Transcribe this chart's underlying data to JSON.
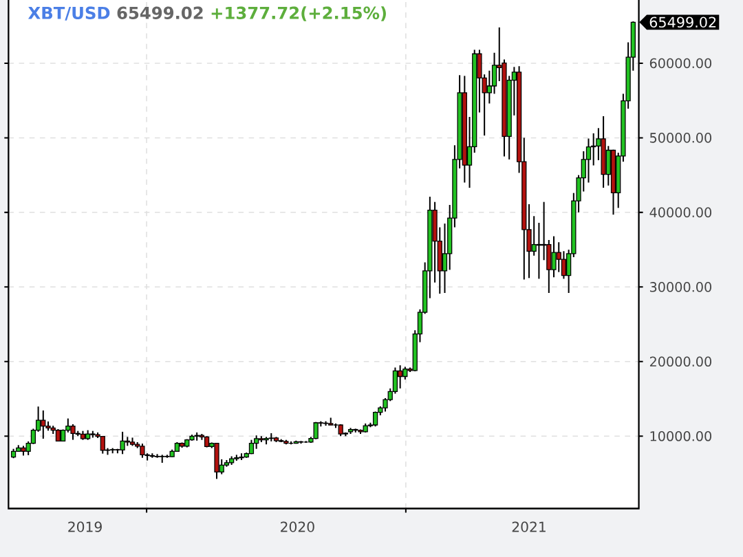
{
  "chart_data": {
    "type": "candlestick",
    "title": "XBT/USD",
    "annotations": [
      "65499.02",
      "+1377.72(+2.15%)",
      "65499.02"
    ],
    "x": [
      "2019-05-27",
      "2019-06-03",
      "2019-06-10",
      "2019-06-17",
      "2019-06-24",
      "2019-07-01",
      "2019-07-08",
      "2019-07-15",
      "2019-07-22",
      "2019-07-29",
      "2019-08-05",
      "2019-08-12",
      "2019-08-19",
      "2019-08-26",
      "2019-09-02",
      "2019-09-09",
      "2019-09-16",
      "2019-09-23",
      "2019-09-30",
      "2019-10-07",
      "2019-10-14",
      "2019-10-21",
      "2019-10-28",
      "2019-11-04",
      "2019-11-11",
      "2019-11-18",
      "2019-11-25",
      "2019-12-02",
      "2019-12-09",
      "2019-12-16",
      "2019-12-23",
      "2019-12-30",
      "2020-01-06",
      "2020-01-13",
      "2020-01-20",
      "2020-01-27",
      "2020-02-03",
      "2020-02-10",
      "2020-02-17",
      "2020-02-24",
      "2020-03-02",
      "2020-03-09",
      "2020-03-16",
      "2020-03-23",
      "2020-03-30",
      "2020-04-06",
      "2020-04-13",
      "2020-04-20",
      "2020-04-27",
      "2020-05-04",
      "2020-05-11",
      "2020-05-18",
      "2020-05-25",
      "2020-06-01",
      "2020-06-08",
      "2020-06-15",
      "2020-06-22",
      "2020-06-29",
      "2020-07-06",
      "2020-07-13",
      "2020-07-20",
      "2020-07-27",
      "2020-08-03",
      "2020-08-10",
      "2020-08-17",
      "2020-08-24",
      "2020-08-31",
      "2020-09-07",
      "2020-09-14",
      "2020-09-21",
      "2020-09-28",
      "2020-10-05",
      "2020-10-12",
      "2020-10-19",
      "2020-10-26",
      "2020-11-02",
      "2020-11-09",
      "2020-11-16",
      "2020-11-23",
      "2020-11-30",
      "2020-12-07",
      "2020-12-14",
      "2020-12-21",
      "2020-12-28",
      "2021-01-04",
      "2021-01-11",
      "2021-01-18",
      "2021-01-25",
      "2021-02-01",
      "2021-02-08",
      "2021-02-15",
      "2021-02-22",
      "2021-03-01",
      "2021-03-08",
      "2021-03-15",
      "2021-03-22",
      "2021-03-29",
      "2021-04-05",
      "2021-04-12",
      "2021-04-19",
      "2021-04-26",
      "2021-05-03",
      "2021-05-10",
      "2021-05-17",
      "2021-05-24",
      "2021-05-31",
      "2021-06-07",
      "2021-06-14",
      "2021-06-21",
      "2021-06-28",
      "2021-07-05",
      "2021-07-12",
      "2021-07-19",
      "2021-07-26",
      "2021-08-02",
      "2021-08-09",
      "2021-08-16",
      "2021-08-23",
      "2021-08-30",
      "2021-09-06",
      "2021-09-13",
      "2021-09-20",
      "2021-09-27",
      "2021-10-04",
      "2021-10-11",
      "2021-10-18"
    ],
    "ohlc": [
      [
        7200,
        8300,
        7050,
        7970
      ],
      [
        7970,
        8800,
        7900,
        8430
      ],
      [
        8430,
        8700,
        7400,
        7970
      ],
      [
        7970,
        9300,
        7450,
        9050
      ],
      [
        9050,
        11000,
        8950,
        10800
      ],
      [
        10800,
        13970,
        10590,
        12130
      ],
      [
        12130,
        13450,
        9660,
        11360
      ],
      [
        11360,
        11970,
        10740,
        11100
      ],
      [
        11100,
        11400,
        10300,
        10800
      ],
      [
        10800,
        10950,
        9300,
        9350
      ],
      [
        9350,
        10900,
        9300,
        10800
      ],
      [
        10800,
        12370,
        10500,
        11350
      ],
      [
        11350,
        11600,
        9510,
        10370
      ],
      [
        10370,
        10700,
        10000,
        10270
      ],
      [
        10270,
        10700,
        9500,
        9660
      ],
      [
        9660,
        10800,
        9500,
        10300
      ],
      [
        10300,
        10700,
        9800,
        10200
      ],
      [
        10200,
        10500,
        9750,
        9970
      ],
      [
        9970,
        10000,
        7660,
        8100
      ],
      [
        8100,
        8400,
        7500,
        8150
      ],
      [
        8150,
        8400,
        7700,
        8200
      ],
      [
        8200,
        8300,
        7700,
        8150
      ],
      [
        8150,
        10590,
        7600,
        9350
      ],
      [
        9350,
        9900,
        8700,
        9200
      ],
      [
        9200,
        9800,
        8700,
        8900
      ],
      [
        8900,
        9200,
        8400,
        8650
      ],
      [
        8650,
        9000,
        7100,
        7500
      ],
      [
        7500,
        7700,
        6740,
        7400
      ],
      [
        7400,
        7700,
        7100,
        7300
      ],
      [
        7300,
        7600,
        7100,
        7250
      ],
      [
        7250,
        7500,
        6430,
        7300
      ],
      [
        7300,
        7500,
        7100,
        7250
      ],
      [
        7250,
        8200,
        7200,
        7960
      ],
      [
        7960,
        9200,
        7900,
        9050
      ],
      [
        9050,
        9150,
        8450,
        8650
      ],
      [
        8650,
        9600,
        8500,
        9500
      ],
      [
        9500,
        10200,
        9400,
        10000
      ],
      [
        10000,
        10500,
        9400,
        10100
      ],
      [
        10100,
        10300,
        9500,
        9900
      ],
      [
        9900,
        10000,
        8500,
        8600
      ],
      [
        8600,
        9150,
        8400,
        9050
      ],
      [
        9050,
        9100,
        4270,
        5200
      ],
      [
        5200,
        6900,
        4900,
        6120
      ],
      [
        6120,
        6800,
        5900,
        6450
      ],
      [
        6450,
        7300,
        6150,
        6980
      ],
      [
        6980,
        7500,
        6700,
        7100
      ],
      [
        7100,
        7700,
        6800,
        7200
      ],
      [
        7200,
        7800,
        7100,
        7660
      ],
      [
        7660,
        9500,
        7600,
        9050
      ],
      [
        9050,
        10100,
        8300,
        9660
      ],
      [
        9660,
        10000,
        9200,
        9500
      ],
      [
        9500,
        9900,
        8900,
        9700
      ],
      [
        9700,
        10400,
        9300,
        9750
      ],
      [
        9750,
        9900,
        9200,
        9400
      ],
      [
        9400,
        9600,
        9200,
        9300
      ],
      [
        9300,
        9500,
        8900,
        9050
      ],
      [
        9050,
        9300,
        8900,
        9050
      ],
      [
        9050,
        9400,
        9000,
        9250
      ],
      [
        9250,
        9350,
        9000,
        9200
      ],
      [
        9200,
        9350,
        9100,
        9200
      ],
      [
        9200,
        9900,
        9100,
        9700
      ],
      [
        9700,
        11900,
        9600,
        11800
      ],
      [
        11800,
        12000,
        11300,
        11750
      ],
      [
        11750,
        12000,
        11400,
        11700
      ],
      [
        11700,
        12470,
        11500,
        11500
      ],
      [
        11500,
        11700,
        11100,
        11500
      ],
      [
        11500,
        11600,
        10000,
        10300
      ],
      [
        10300,
        10500,
        10000,
        10400
      ],
      [
        10600,
        11100,
        10300,
        10900
      ],
      [
        10900,
        11000,
        10500,
        10800
      ],
      [
        10800,
        10900,
        10300,
        10600
      ],
      [
        10600,
        11700,
        10500,
        11400
      ],
      [
        11400,
        11800,
        11200,
        11500
      ],
      [
        11500,
        13300,
        11300,
        13200
      ],
      [
        13200,
        14000,
        12800,
        13800
      ],
      [
        13800,
        15100,
        13300,
        14900
      ],
      [
        14900,
        16400,
        14700,
        15980
      ],
      [
        15980,
        19200,
        15700,
        18750
      ],
      [
        18750,
        19500,
        16400,
        18000
      ],
      [
        18000,
        19300,
        17600,
        19000
      ],
      [
        19000,
        19200,
        18600,
        18800
      ],
      [
        18800,
        24200,
        18700,
        23700
      ],
      [
        23700,
        27000,
        22600,
        26600
      ],
      [
        26600,
        33300,
        26400,
        32160
      ],
      [
        32160,
        42100,
        28500,
        40300
      ],
      [
        40300,
        41400,
        30600,
        36160
      ],
      [
        36160,
        38000,
        29100,
        32160
      ],
      [
        32160,
        38500,
        29200,
        34470
      ],
      [
        34470,
        41000,
        32300,
        39240
      ],
      [
        39240,
        49000,
        38000,
        47100
      ],
      [
        47100,
        58400,
        45900,
        56030
      ],
      [
        56030,
        58300,
        44000,
        46330
      ],
      [
        46330,
        52800,
        43300,
        48800
      ],
      [
        48800,
        61800,
        48000,
        61260
      ],
      [
        61260,
        61800,
        53400,
        58030
      ],
      [
        58030,
        58500,
        50300,
        56030
      ],
      [
        56030,
        59000,
        54600,
        56950
      ],
      [
        56950,
        61400,
        55900,
        59720
      ],
      [
        59720,
        64800,
        57600,
        59400
      ],
      [
        60030,
        60500,
        47500,
        50180
      ],
      [
        50180,
        58300,
        47100,
        57720
      ],
      [
        57720,
        59500,
        53000,
        58800
      ],
      [
        58800,
        59600,
        45300,
        46790
      ],
      [
        46790,
        50000,
        31000,
        37700
      ],
      [
        37700,
        41100,
        31200,
        34780
      ],
      [
        34780,
        39500,
        34200,
        35700
      ],
      [
        35700,
        38600,
        31100,
        35600
      ],
      [
        35600,
        41400,
        33600,
        35700
      ],
      [
        35700,
        36300,
        29200,
        32320
      ],
      [
        32320,
        36800,
        31300,
        34630
      ],
      [
        34630,
        36000,
        32000,
        33700
      ],
      [
        33700,
        34800,
        31100,
        31550
      ],
      [
        31550,
        35000,
        29200,
        34470
      ],
      [
        34470,
        42600,
        34000,
        41550
      ],
      [
        41550,
        45000,
        40000,
        44640
      ],
      [
        44640,
        48200,
        42800,
        47100
      ],
      [
        47100,
        49900,
        44000,
        48790
      ],
      [
        48790,
        50600,
        46300,
        48900
      ],
      [
        48900,
        51300,
        47000,
        49870
      ],
      [
        49870,
        52900,
        43300,
        45100
      ],
      [
        45100,
        48900,
        43600,
        48330
      ],
      [
        48330,
        48400,
        39700,
        42630
      ],
      [
        42630,
        48000,
        40600,
        47560
      ],
      [
        47560,
        55900,
        46800,
        54950
      ],
      [
        54950,
        62800,
        53900,
        60810
      ],
      [
        60810,
        65600,
        59000,
        65499.02
      ]
    ],
    "colors": [
      "#22c322",
      "#22c322",
      "#b3120f",
      "#22c322",
      "#22c322",
      "#22c322",
      "#b3120f",
      "#b3120f",
      "#b3120f",
      "#b3120f",
      "#22c322",
      "#22c322",
      "#b3120f",
      "#b3120f",
      "#b3120f",
      "#22c322",
      "#b3120f",
      "#b3120f",
      "#b3120f",
      "#22c322",
      "#22c322",
      "#b3120f",
      "#22c322",
      "#b3120f",
      "#b3120f",
      "#b3120f",
      "#b3120f",
      "#b3120f",
      "#b3120f",
      "#b3120f",
      "#22c322",
      "#b3120f",
      "#22c322",
      "#22c322",
      "#b3120f",
      "#22c322",
      "#22c322",
      "#22c322",
      "#b3120f",
      "#b3120f",
      "#22c322",
      "#b3120f",
      "#22c322",
      "#22c322",
      "#22c322",
      "#22c322",
      "#22c322",
      "#22c322",
      "#22c322",
      "#22c322",
      "#b3120f",
      "#22c322",
      "#22c322",
      "#b3120f",
      "#b3120f",
      "#b3120f",
      "#000000",
      "#22c322",
      "#b3120f",
      "#000000",
      "#22c322",
      "#22c322",
      "#b3120f",
      "#b3120f",
      "#b3120f",
      "#000000",
      "#b3120f",
      "#22c322",
      "#22c322",
      "#b3120f",
      "#b3120f",
      "#22c322",
      "#22c322",
      "#22c322",
      "#22c322",
      "#22c322",
      "#22c322",
      "#22c322",
      "#b3120f",
      "#22c322",
      "#b3120f",
      "#22c322",
      "#22c322",
      "#22c322",
      "#22c322",
      "#b3120f",
      "#b3120f",
      "#22c322",
      "#22c322",
      "#22c322",
      "#22c322",
      "#b3120f",
      "#22c322",
      "#22c322",
      "#b3120f",
      "#b3120f",
      "#22c322",
      "#22c322",
      "#b3120f",
      "#b3120f",
      "#22c322",
      "#22c322",
      "#b3120f",
      "#b3120f",
      "#b3120f",
      "#22c322",
      "#b3120f",
      "#22c322",
      "#b3120f",
      "#22c322",
      "#b3120f",
      "#b3120f",
      "#22c322",
      "#22c322",
      "#22c322",
      "#22c322",
      "#22c322",
      "#22c322",
      "#22c322",
      "#b3120f",
      "#22c322",
      "#b3120f",
      "#22c322",
      "#22c322",
      "#22c322",
      "#22c322"
    ],
    "xlim": [
      "2019-05-20",
      "2021-10-26"
    ],
    "xticks": [
      {
        "value": "2019-09-05",
        "label": "2019"
      },
      {
        "value": "2019-12-01",
        "label": null
      },
      {
        "value": "2020-07-01",
        "label": "2020"
      },
      {
        "value": "2020-12-01",
        "label": null
      },
      {
        "value": "2021-05-24",
        "label": "2021"
      }
    ],
    "ylim": [
      300,
      69000
    ],
    "yticks": [
      {
        "value": 10000,
        "label": "10000.00"
      },
      {
        "value": 20000,
        "label": "20000.00"
      },
      {
        "value": 30000,
        "label": "30000.00"
      },
      {
        "value": 40000,
        "label": "40000.00"
      },
      {
        "value": 50000,
        "label": "50000.00"
      },
      {
        "value": 60000,
        "label": "60000.00"
      }
    ],
    "grid": true
  }
}
